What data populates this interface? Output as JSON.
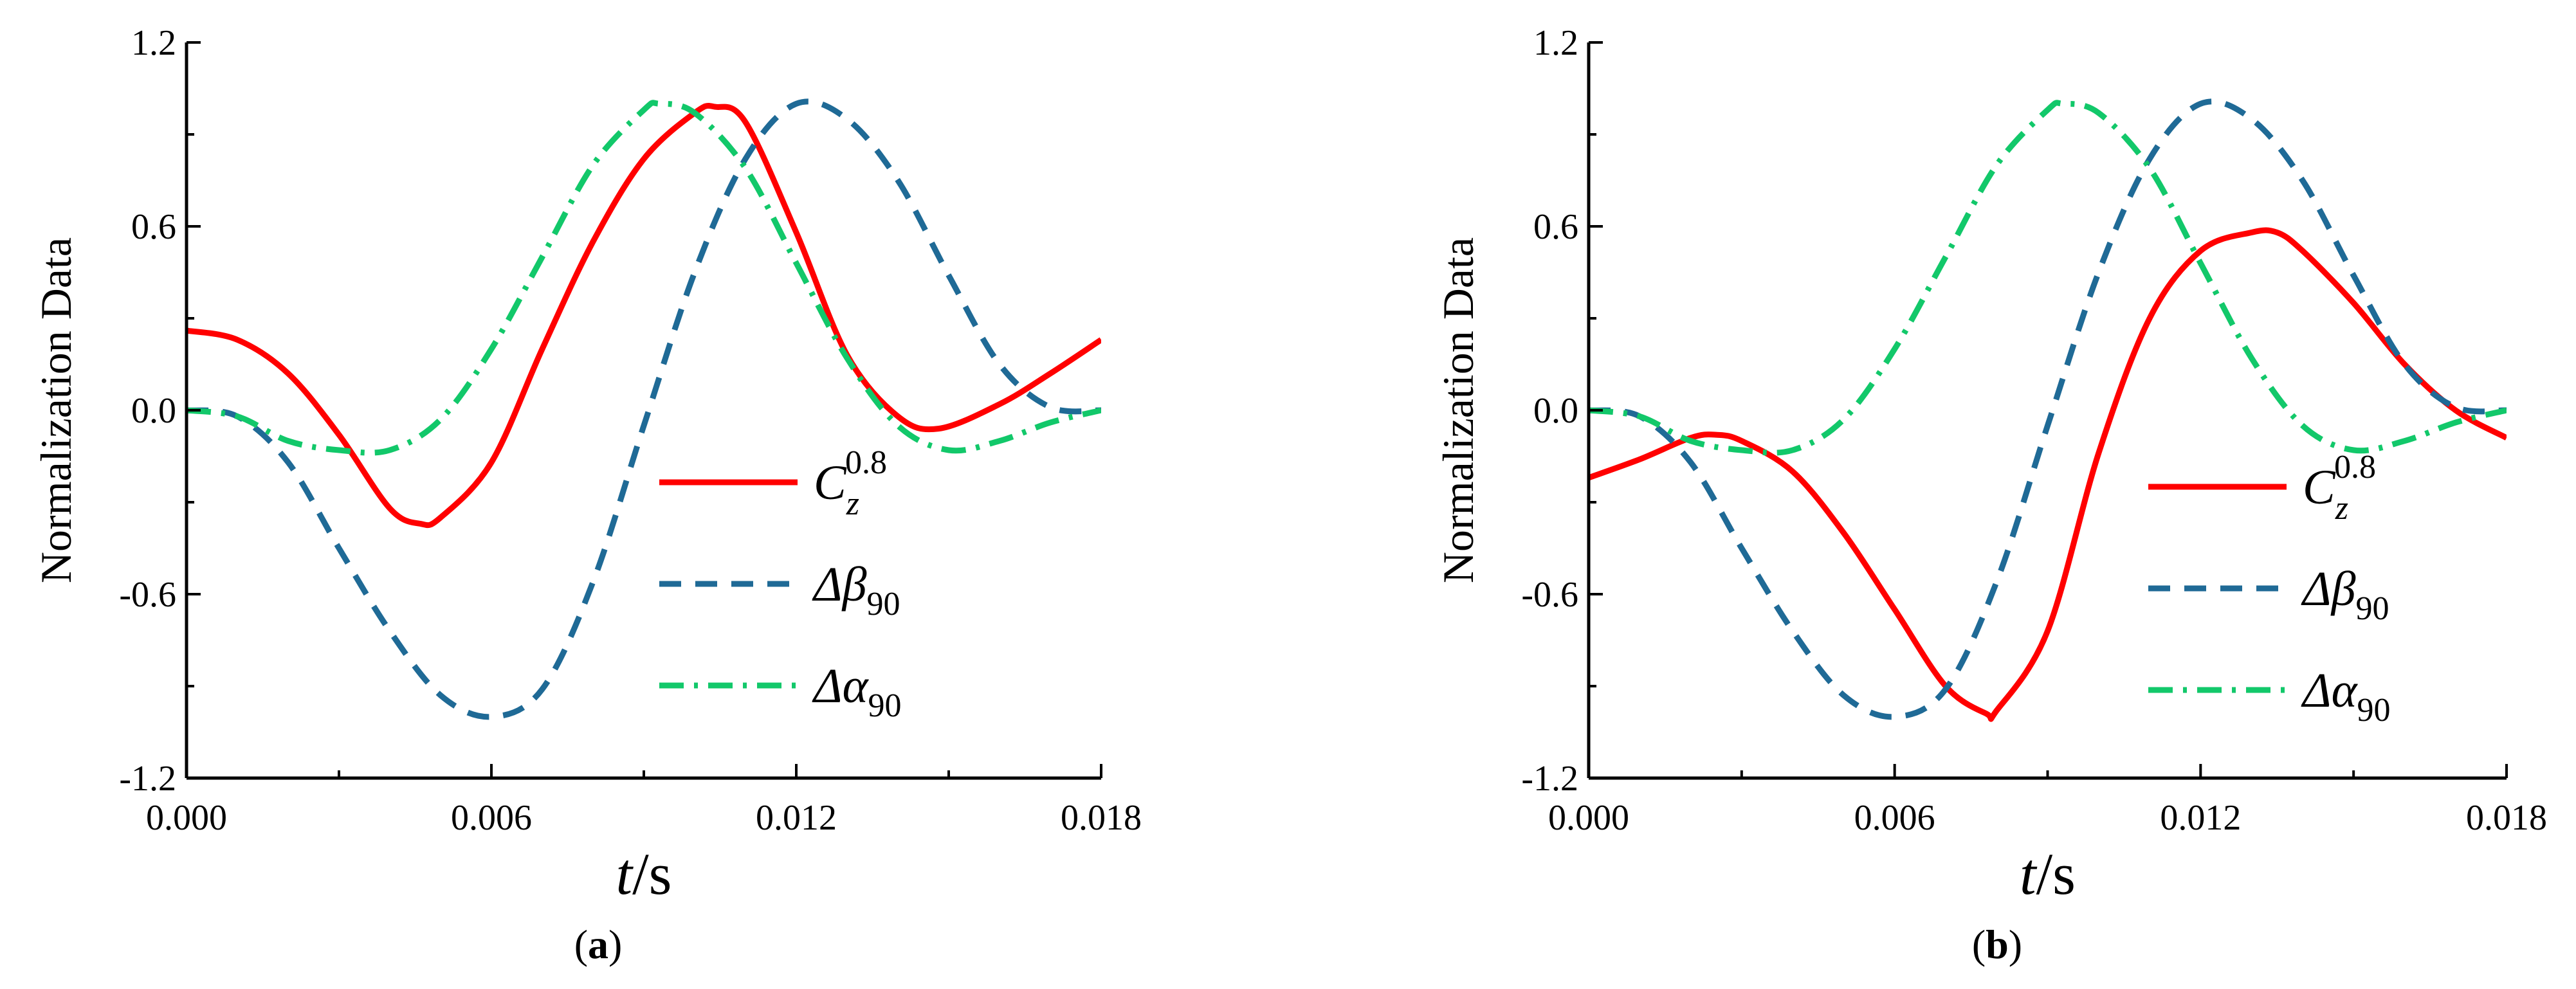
{
  "colors": {
    "cz": "#ff0000",
    "dbeta": "#1f6a96",
    "dalpha": "#12c86a",
    "axis": "#000000"
  },
  "chart_data": [
    {
      "type": "line",
      "panel_label": {
        "open": "(",
        "letter": "a",
        "close": ")"
      },
      "ylabel": "Normalization Data",
      "xlabel": {
        "var": "t",
        "unit": "/s"
      },
      "xlim": [
        0,
        0.018
      ],
      "ylim": [
        -1.2,
        1.2
      ],
      "xticks": [
        "0.000",
        "0.006",
        "0.012",
        "0.018"
      ],
      "yticks": [
        "-1.2",
        "-0.6",
        "0.0",
        "0.6",
        "1.2"
      ],
      "xticks_values": [
        0,
        0.006,
        0.012,
        0.018
      ],
      "yticks_values": [
        -1.2,
        -0.6,
        0,
        0.6,
        1.2
      ],
      "legend": [
        {
          "key": "cz",
          "main": "C",
          "sub": "z",
          "sup": "0.8",
          "style": "solid"
        },
        {
          "key": "dbeta",
          "main": "Δβ",
          "sub": "90",
          "sup": "",
          "style": "dash"
        },
        {
          "key": "dalpha",
          "main": "Δα",
          "sub": "90",
          "sup": "",
          "style": "dashdot"
        }
      ],
      "series": [
        {
          "name": "Cz^0.8",
          "key": "cz",
          "style": "solid",
          "x": [
            0,
            0.001,
            0.002,
            0.003,
            0.004,
            0.0046,
            0.005,
            0.006,
            0.007,
            0.008,
            0.009,
            0.01,
            0.0104,
            0.011,
            0.012,
            0.013,
            0.014,
            0.0148,
            0.016,
            0.017,
            0.018
          ],
          "y": [
            0.26,
            0.23,
            0.12,
            -0.08,
            -0.32,
            -0.37,
            -0.35,
            -0.17,
            0.2,
            0.55,
            0.82,
            0.97,
            0.99,
            0.94,
            0.58,
            0.18,
            -0.02,
            -0.06,
            0.02,
            0.12,
            0.23
          ]
        },
        {
          "name": "Δβ90",
          "key": "dbeta",
          "style": "dash",
          "x": [
            0,
            0.001,
            0.002,
            0.003,
            0.004,
            0.005,
            0.006,
            0.007,
            0.008,
            0.009,
            0.01,
            0.011,
            0.012,
            0.013,
            0.014,
            0.015,
            0.016,
            0.017,
            0.018
          ],
          "y": [
            0,
            -0.02,
            -0.17,
            -0.45,
            -0.72,
            -0.93,
            -1.0,
            -0.91,
            -0.56,
            -0.05,
            0.45,
            0.82,
            1.0,
            0.95,
            0.75,
            0.44,
            0.15,
            0.01,
            0
          ],
          "x_extra": 0
        },
        {
          "name": "Δα90",
          "key": "dalpha",
          "style": "dashdot",
          "x": [
            0,
            0.001,
            0.002,
            0.003,
            0.004,
            0.005,
            0.006,
            0.007,
            0.008,
            0.009,
            0.0093,
            0.01,
            0.011,
            0.012,
            0.013,
            0.014,
            0.015,
            0.016,
            0.017,
            0.018
          ],
          "y": [
            0,
            -0.02,
            -0.1,
            -0.13,
            -0.13,
            -0.03,
            0.2,
            0.5,
            0.8,
            0.98,
            1.0,
            0.97,
            0.79,
            0.48,
            0.17,
            -0.05,
            -0.13,
            -0.1,
            -0.04,
            0
          ]
        }
      ]
    },
    {
      "type": "line",
      "panel_label": {
        "open": "(",
        "letter": "b",
        "close": ")"
      },
      "ylabel": "Normalization Data",
      "xlabel": {
        "var": "t",
        "unit": "/s"
      },
      "xlim": [
        0,
        0.018
      ],
      "ylim": [
        -1.2,
        1.2
      ],
      "xticks": [
        "0.000",
        "0.006",
        "0.012",
        "0.018"
      ],
      "yticks": [
        "-1.2",
        "-0.6",
        "0.0",
        "0.6",
        "1.2"
      ],
      "xticks_values": [
        0,
        0.006,
        0.012,
        0.018
      ],
      "yticks_values": [
        -1.2,
        -0.6,
        0,
        0.6,
        1.2
      ],
      "legend": [
        {
          "key": "cz",
          "main": "C",
          "sub": "z",
          "sup": "0.8",
          "style": "solid"
        },
        {
          "key": "dbeta",
          "main": "Δβ",
          "sub": "90",
          "sup": "",
          "style": "dash"
        },
        {
          "key": "dalpha",
          "main": "Δα",
          "sub": "90",
          "sup": "",
          "style": "dashdot"
        }
      ],
      "series": [
        {
          "name": "Cz^0.8",
          "key": "cz",
          "style": "solid",
          "x": [
            0,
            0.001,
            0.002,
            0.0025,
            0.003,
            0.004,
            0.005,
            0.006,
            0.007,
            0.0078,
            0.008,
            0.009,
            0.01,
            0.011,
            0.012,
            0.013,
            0.0135,
            0.014,
            0.015,
            0.016,
            0.017,
            0.018
          ],
          "y": [
            -0.22,
            -0.16,
            -0.09,
            -0.08,
            -0.1,
            -0.2,
            -0.4,
            -0.65,
            -0.9,
            -0.99,
            -0.98,
            -0.72,
            -0.14,
            0.3,
            0.52,
            0.58,
            0.58,
            0.52,
            0.35,
            0.15,
            0.0,
            -0.09
          ]
        },
        {
          "name": "Δβ90",
          "key": "dbeta",
          "style": "dash",
          "x": [
            0,
            0.001,
            0.002,
            0.003,
            0.004,
            0.005,
            0.006,
            0.007,
            0.008,
            0.009,
            0.01,
            0.011,
            0.012,
            0.013,
            0.014,
            0.015,
            0.016,
            0.017,
            0.018
          ],
          "y": [
            0,
            -0.02,
            -0.17,
            -0.45,
            -0.72,
            -0.93,
            -1.0,
            -0.91,
            -0.56,
            -0.05,
            0.45,
            0.82,
            1.0,
            0.95,
            0.75,
            0.44,
            0.15,
            0.01,
            0
          ]
        },
        {
          "name": "Δα90",
          "key": "dalpha",
          "style": "dashdot",
          "x": [
            0,
            0.001,
            0.002,
            0.003,
            0.004,
            0.005,
            0.006,
            0.007,
            0.008,
            0.009,
            0.0093,
            0.01,
            0.011,
            0.012,
            0.013,
            0.014,
            0.015,
            0.016,
            0.017,
            0.018
          ],
          "y": [
            0,
            -0.02,
            -0.1,
            -0.13,
            -0.13,
            -0.03,
            0.2,
            0.5,
            0.8,
            0.98,
            1.0,
            0.97,
            0.79,
            0.48,
            0.17,
            -0.05,
            -0.13,
            -0.1,
            -0.04,
            0
          ]
        }
      ]
    }
  ]
}
